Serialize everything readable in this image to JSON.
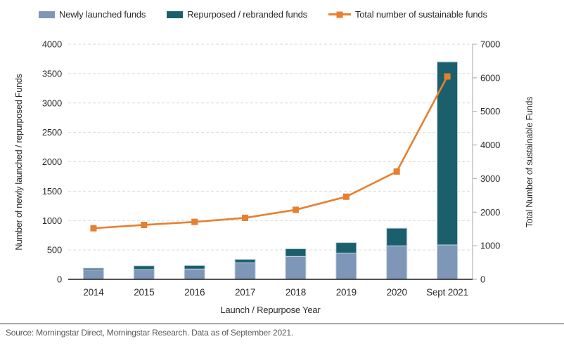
{
  "legend": [
    {
      "label": "Newly launched funds",
      "type": "bar",
      "color": "#7e96b8"
    },
    {
      "label": "Repurposed / rebranded funds",
      "type": "bar",
      "color": "#1b5f6c"
    },
    {
      "label": "Total number of sustainable funds",
      "type": "line",
      "color": "#e87f2f"
    }
  ],
  "chart_data": {
    "type": "bar+line",
    "categories": [
      "2014",
      "2015",
      "2016",
      "2017",
      "2018",
      "2019",
      "2020",
      "Sept 2021"
    ],
    "series": [
      {
        "name": "Newly launched funds",
        "type": "bar",
        "axis": "left",
        "color": "#7e96b8",
        "values": [
          160,
          165,
          175,
          280,
          390,
          445,
          570,
          585
        ]
      },
      {
        "name": "Repurposed / rebranded funds",
        "type": "bar",
        "axis": "left",
        "stacked": true,
        "color": "#1b5f6c",
        "values": [
          30,
          65,
          60,
          60,
          130,
          180,
          300,
          3115
        ]
      },
      {
        "name": "Total number of sustainable funds",
        "type": "line",
        "axis": "right",
        "color": "#e87f2f",
        "marker": "square",
        "values": [
          1520,
          1620,
          1710,
          1830,
          2070,
          2460,
          3210,
          6040
        ]
      }
    ],
    "left_axis": {
      "label": "Number of newly launched / repurposed Funds",
      "min": 0,
      "max": 4000,
      "ticks": [
        0,
        500,
        1000,
        1500,
        2000,
        2500,
        3000,
        3500,
        4000
      ]
    },
    "right_axis": {
      "label": "Total Number of sustainable Funds",
      "min": 0,
      "max": 7000,
      "ticks": [
        0,
        1000,
        2000,
        3000,
        4000,
        5000,
        6000,
        7000
      ]
    },
    "x_axis": {
      "label": "Launch / Repurpose Year"
    },
    "grid": "horizontal dashed",
    "legend_position": "top"
  },
  "footer": {
    "source": "Source: Morningstar Direct, Morningstar Research. Data as of September 2021."
  },
  "colors": {
    "newly_launched": "#7e96b8",
    "repurposed": "#1b5f6c",
    "total_line": "#e87f2f",
    "bar_outline": "#c3d2df",
    "gridline": "#d9d9d9",
    "bottom_axis": "#1a1a1a",
    "right_axis": "#b3b3b3",
    "tick_text": "#2b2b2b",
    "source_text": "#595959"
  }
}
